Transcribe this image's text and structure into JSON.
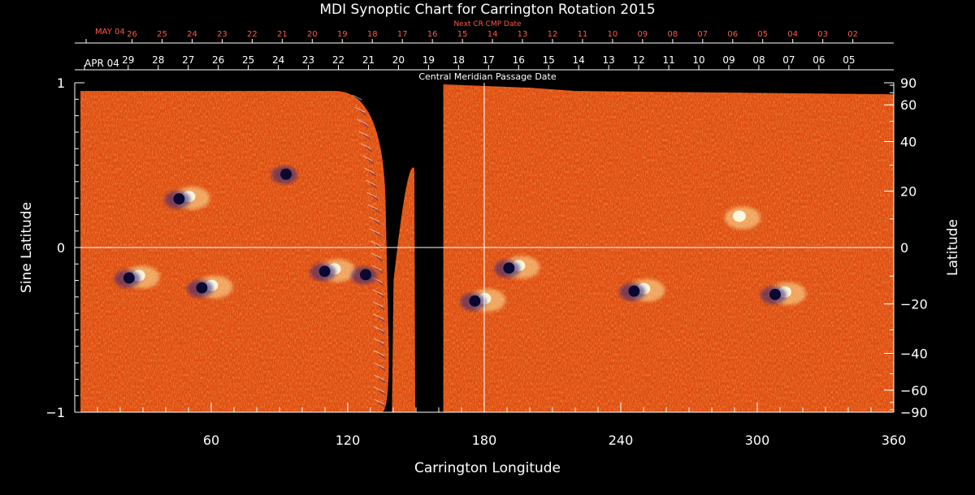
{
  "chart_data": {
    "type": "heatmap",
    "title": "MDI Synoptic Chart for Carrington Rotation 2015",
    "xlabel": "Carrington Longitude",
    "ylabel_left": "Sine Latitude",
    "ylabel_right": "Latitude",
    "top_axis_label": "Central Meridian Passage Date",
    "next_cr_label": "Next CR CMP Date",
    "xlim": [
      0,
      360
    ],
    "ylim": [
      -1,
      1
    ],
    "x_ticks": [
      60,
      120,
      180,
      240,
      300,
      360
    ],
    "x_minor_step": 10,
    "y_left_ticks": [
      {
        "v": 1,
        "label": "1"
      },
      {
        "v": 0,
        "label": "0"
      },
      {
        "v": -1,
        "label": "−1"
      }
    ],
    "y_left_minor_step": 0.1,
    "y_right_ticks": [
      90,
      60,
      40,
      20,
      0,
      -20,
      -40,
      -60,
      -90
    ],
    "y_right_labels": [
      "90",
      "60",
      "40",
      "20",
      "0",
      "−20",
      "−40",
      "−60",
      "−90"
    ],
    "y_right_minor_step": 10,
    "cmp_dates": {
      "first_label": "APR 04",
      "first_x": 0,
      "step": 13.2,
      "start_x": 23.5,
      "labels": [
        "29",
        "28",
        "27",
        "26",
        "25",
        "24",
        "23",
        "22",
        "21",
        "20",
        "19",
        "18",
        "17",
        "16",
        "15",
        "14",
        "13",
        "12",
        "11",
        "10",
        "09",
        "08",
        "07",
        "06",
        "05"
      ]
    },
    "next_cr_dates": {
      "first_label": "MAY 04",
      "first_x": 0,
      "step": 13.2,
      "start_x": 25.2,
      "labels": [
        "26",
        "25",
        "24",
        "23",
        "22",
        "21",
        "20",
        "19",
        "18",
        "17",
        "16",
        "15",
        "14",
        "13",
        "12",
        "11",
        "10",
        "09",
        "08",
        "07",
        "06",
        "05",
        "04",
        "03",
        "02"
      ]
    },
    "data_gaps": [
      {
        "type": "curved",
        "x_start": 118,
        "x_end": 138
      },
      {
        "type": "band",
        "x_start": 150,
        "x_end": 162
      }
    ],
    "active_regions": [
      {
        "lon": 48,
        "sinlat": 0.3,
        "polarity": "bipolar"
      },
      {
        "lon": 95,
        "sinlat": 0.45,
        "polarity": "negative"
      },
      {
        "lon": 26,
        "sinlat": -0.18,
        "polarity": "bipolar"
      },
      {
        "lon": 58,
        "sinlat": -0.24,
        "polarity": "bipolar"
      },
      {
        "lon": 112,
        "sinlat": -0.14,
        "polarity": "bipolar"
      },
      {
        "lon": 130,
        "sinlat": -0.16,
        "polarity": "negative"
      },
      {
        "lon": 193,
        "sinlat": -0.12,
        "polarity": "bipolar"
      },
      {
        "lon": 178,
        "sinlat": -0.32,
        "polarity": "bipolar"
      },
      {
        "lon": 248,
        "sinlat": -0.26,
        "polarity": "bipolar"
      },
      {
        "lon": 310,
        "sinlat": -0.28,
        "polarity": "bipolar"
      },
      {
        "lon": 290,
        "sinlat": 0.18,
        "polarity": "positive"
      }
    ],
    "colors": {
      "background": "#000000",
      "axes": "#ffffff",
      "date_red": "#ff5a3c",
      "field_base": "#e04a10",
      "field_light": "#ffb060",
      "field_dark": "#a82000",
      "positive_flux": "#fffbe0",
      "negative_flux": "#0a0830",
      "negative_mid": "#3a2a7a"
    },
    "grid": false,
    "cursor_crosshair": {
      "x": 180,
      "sinlat": 0
    }
  }
}
